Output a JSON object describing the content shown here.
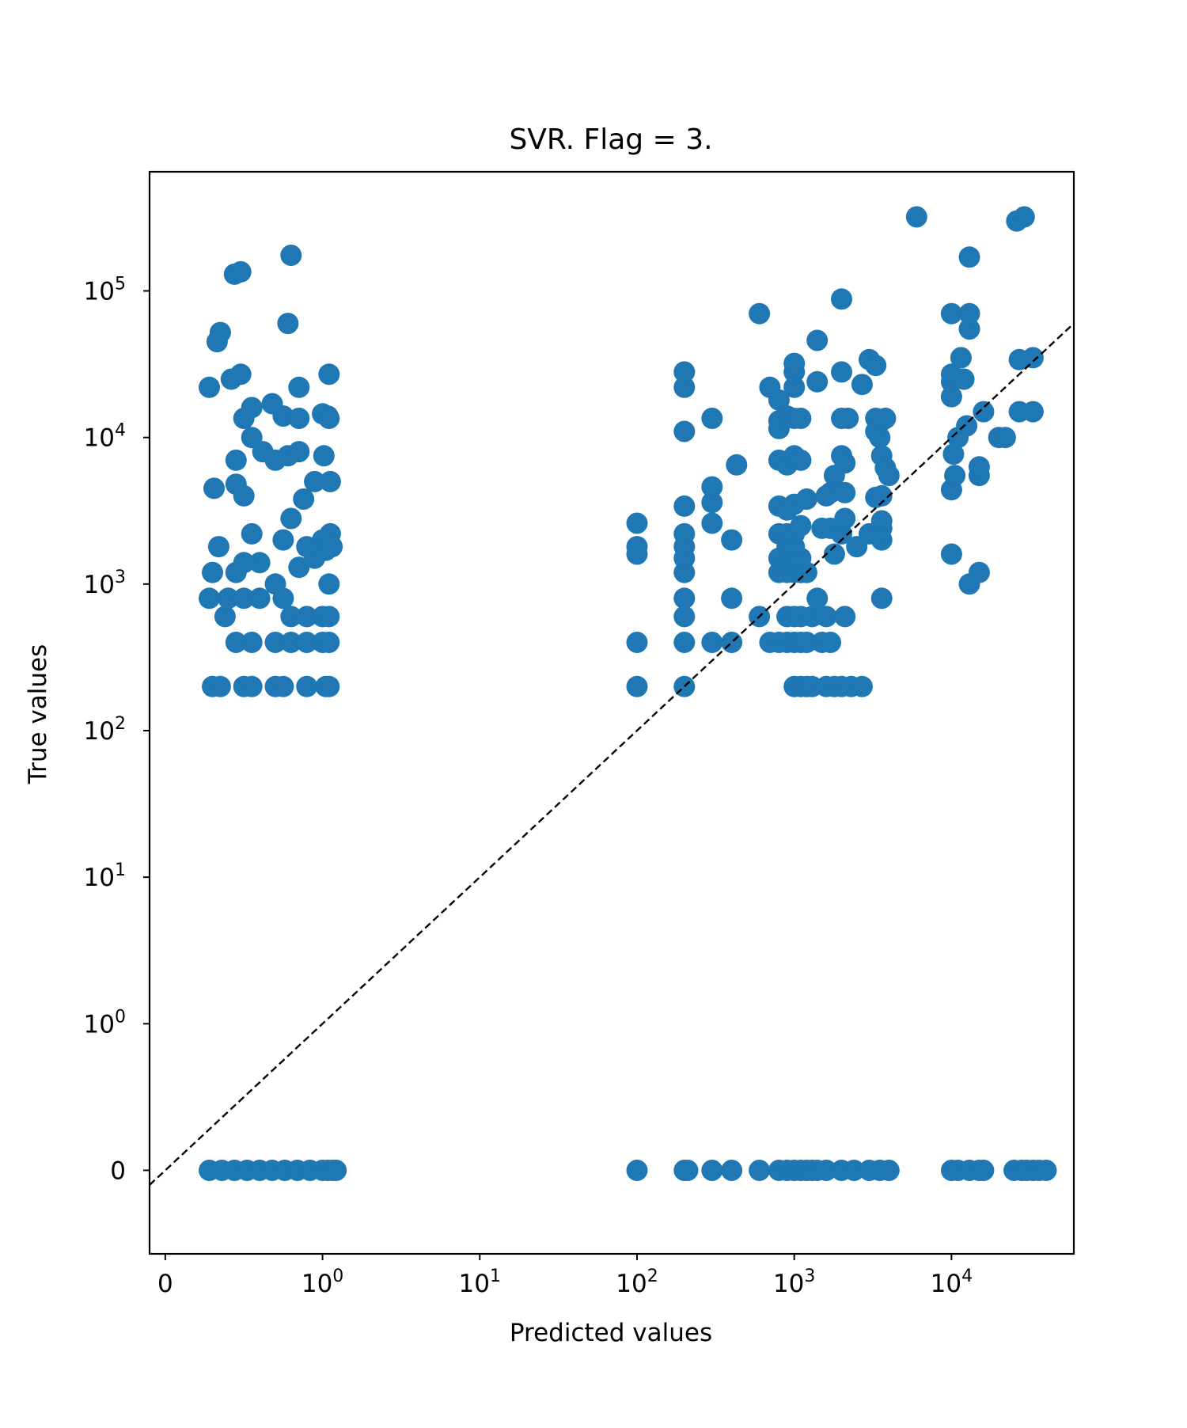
{
  "chart_data": {
    "type": "scatter",
    "title": "SVR. Flag = 3.",
    "xlabel": "Predicted values",
    "ylabel": "True values",
    "xscale": "symlog",
    "yscale": "symlog",
    "linthresh": 1,
    "xlim": [
      -0.1,
      60000
    ],
    "ylim": [
      -0.57,
      650000
    ],
    "x_ticks": [
      {
        "value": 0,
        "base": "0",
        "exp": ""
      },
      {
        "value": 1,
        "base": "10",
        "exp": "0"
      },
      {
        "value": 10,
        "base": "10",
        "exp": "1"
      },
      {
        "value": 100,
        "base": "10",
        "exp": "2"
      },
      {
        "value": 1000,
        "base": "10",
        "exp": "3"
      },
      {
        "value": 10000,
        "base": "10",
        "exp": "4"
      }
    ],
    "y_ticks": [
      {
        "value": 0,
        "base": "0",
        "exp": ""
      },
      {
        "value": 1,
        "base": "10",
        "exp": "0"
      },
      {
        "value": 10,
        "base": "10",
        "exp": "1"
      },
      {
        "value": 100,
        "base": "10",
        "exp": "2"
      },
      {
        "value": 1000,
        "base": "10",
        "exp": "3"
      },
      {
        "value": 10000,
        "base": "10",
        "exp": "4"
      },
      {
        "value": 100000,
        "base": "10",
        "exp": "5"
      }
    ],
    "grid": false,
    "legend": "none",
    "reference_line": {
      "type": "identity y=x",
      "style": "dashed",
      "color": "#000000"
    },
    "marker_color": "#1f77b4",
    "points": [
      [
        0.28,
        0
      ],
      [
        0.36,
        0
      ],
      [
        0.44,
        0
      ],
      [
        0.52,
        0
      ],
      [
        0.6,
        0
      ],
      [
        0.68,
        0
      ],
      [
        0.76,
        0
      ],
      [
        0.84,
        0
      ],
      [
        0.92,
        0
      ],
      [
        1.0,
        0
      ],
      [
        1.08,
        0
      ],
      [
        1.16,
        0
      ],
      [
        1.22,
        0
      ],
      [
        100,
        0
      ],
      [
        200,
        0
      ],
      [
        210,
        0
      ],
      [
        300,
        0
      ],
      [
        400,
        0
      ],
      [
        600,
        0
      ],
      [
        800,
        0
      ],
      [
        900,
        0
      ],
      [
        1000,
        0
      ],
      [
        1100,
        0
      ],
      [
        1200,
        0
      ],
      [
        1300,
        0
      ],
      [
        1400,
        0
      ],
      [
        1600,
        0
      ],
      [
        2000,
        0
      ],
      [
        2400,
        0
      ],
      [
        3000,
        0
      ],
      [
        3500,
        0
      ],
      [
        4000,
        0
      ],
      [
        10000,
        0
      ],
      [
        11000,
        0
      ],
      [
        13000,
        0
      ],
      [
        15000,
        0
      ],
      [
        16000,
        0
      ],
      [
        25000,
        0
      ],
      [
        28000,
        0
      ],
      [
        30000,
        0
      ],
      [
        33000,
        0
      ],
      [
        36000,
        0
      ],
      [
        40000,
        0
      ],
      [
        0.3,
        200
      ],
      [
        0.35,
        200
      ],
      [
        0.5,
        200
      ],
      [
        0.55,
        200
      ],
      [
        0.7,
        200
      ],
      [
        0.75,
        200
      ],
      [
        0.9,
        200
      ],
      [
        1.05,
        200
      ],
      [
        1.1,
        200
      ],
      [
        0.45,
        400
      ],
      [
        0.55,
        400
      ],
      [
        0.7,
        400
      ],
      [
        0.8,
        400
      ],
      [
        0.9,
        400
      ],
      [
        1.0,
        400
      ],
      [
        1.1,
        400
      ],
      [
        0.38,
        600
      ],
      [
        0.8,
        600
      ],
      [
        0.9,
        600
      ],
      [
        1.0,
        600
      ],
      [
        1.1,
        600
      ],
      [
        0.28,
        800
      ],
      [
        0.4,
        800
      ],
      [
        0.5,
        800
      ],
      [
        0.6,
        800
      ],
      [
        0.75,
        800
      ],
      [
        0.3,
        1200
      ],
      [
        0.45,
        1200
      ],
      [
        0.6,
        1400
      ],
      [
        0.7,
        1000
      ],
      [
        1.1,
        1000
      ],
      [
        0.85,
        1300
      ],
      [
        0.95,
        1500
      ],
      [
        0.34,
        1800
      ],
      [
        0.5,
        1400
      ],
      [
        0.55,
        2200
      ],
      [
        0.75,
        2000
      ],
      [
        0.8,
        2800
      ],
      [
        0.9,
        1800
      ],
      [
        1.0,
        2000
      ],
      [
        1.05,
        1700
      ],
      [
        1.12,
        2200
      ],
      [
        1.15,
        1800
      ],
      [
        0.31,
        4500
      ],
      [
        0.45,
        4800
      ],
      [
        0.5,
        4000
      ],
      [
        0.88,
        3800
      ],
      [
        0.95,
        5000
      ],
      [
        1.12,
        5000
      ],
      [
        0.45,
        7000
      ],
      [
        0.55,
        10000
      ],
      [
        0.62,
        8000
      ],
      [
        0.7,
        7000
      ],
      [
        0.78,
        7500
      ],
      [
        0.85,
        8000
      ],
      [
        1.02,
        7500
      ],
      [
        0.5,
        13500
      ],
      [
        0.55,
        16000
      ],
      [
        0.68,
        17000
      ],
      [
        0.75,
        14000
      ],
      [
        0.85,
        13500
      ],
      [
        1.0,
        14500
      ],
      [
        1.08,
        14000
      ],
      [
        1.1,
        13500
      ],
      [
        0.28,
        22000
      ],
      [
        0.42,
        25000
      ],
      [
        0.48,
        27000
      ],
      [
        0.85,
        22000
      ],
      [
        1.1,
        27000
      ],
      [
        0.33,
        45000
      ],
      [
        0.35,
        52000
      ],
      [
        0.78,
        60000
      ],
      [
        0.44,
        130000
      ],
      [
        0.48,
        135000
      ],
      [
        0.8,
        175000
      ],
      [
        100,
        200
      ],
      [
        200,
        200
      ],
      [
        100,
        400
      ],
      [
        200,
        400
      ],
      [
        300,
        400
      ],
      [
        400,
        400
      ],
      [
        200,
        600
      ],
      [
        200,
        800
      ],
      [
        400,
        800
      ],
      [
        200,
        1200
      ],
      [
        200,
        1500
      ],
      [
        200,
        1800
      ],
      [
        200,
        2200
      ],
      [
        100,
        1600
      ],
      [
        100,
        1800
      ],
      [
        100,
        2600
      ],
      [
        200,
        3400
      ],
      [
        300,
        2600
      ],
      [
        300,
        3600
      ],
      [
        300,
        4600
      ],
      [
        400,
        2000
      ],
      [
        430,
        6500
      ],
      [
        300,
        13500
      ],
      [
        200,
        11000
      ],
      [
        200,
        22000
      ],
      [
        200,
        28000
      ],
      [
        600,
        70000
      ],
      [
        1000,
        200
      ],
      [
        1100,
        200
      ],
      [
        1200,
        200
      ],
      [
        1300,
        200
      ],
      [
        1600,
        200
      ],
      [
        1800,
        200
      ],
      [
        2000,
        200
      ],
      [
        2300,
        200
      ],
      [
        2700,
        200
      ],
      [
        700,
        400
      ],
      [
        800,
        400
      ],
      [
        900,
        400
      ],
      [
        1000,
        400
      ],
      [
        1100,
        400
      ],
      [
        1200,
        400
      ],
      [
        1500,
        400
      ],
      [
        1700,
        400
      ],
      [
        900,
        600
      ],
      [
        1000,
        600
      ],
      [
        1100,
        600
      ],
      [
        1300,
        600
      ],
      [
        1600,
        600
      ],
      [
        2100,
        600
      ],
      [
        600,
        600
      ],
      [
        1400,
        800
      ],
      [
        3600,
        800
      ],
      [
        800,
        1200
      ],
      [
        900,
        1200
      ],
      [
        1000,
        1200
      ],
      [
        1100,
        1200
      ],
      [
        1200,
        1200
      ],
      [
        800,
        1500
      ],
      [
        900,
        1500
      ],
      [
        1000,
        1500
      ],
      [
        1100,
        1500
      ],
      [
        900,
        1800
      ],
      [
        1000,
        1800
      ],
      [
        800,
        2200
      ],
      [
        900,
        2200
      ],
      [
        1000,
        2200
      ],
      [
        1100,
        2500
      ],
      [
        1800,
        1600
      ],
      [
        2500,
        1800
      ],
      [
        2000,
        2200
      ],
      [
        3000,
        2200
      ],
      [
        1700,
        2400
      ],
      [
        1500,
        2400
      ],
      [
        2100,
        2800
      ],
      [
        3600,
        2000
      ],
      [
        3600,
        2400
      ],
      [
        800,
        3400
      ],
      [
        900,
        3200
      ],
      [
        1000,
        3500
      ],
      [
        1200,
        3800
      ],
      [
        1600,
        4000
      ],
      [
        1700,
        4200
      ],
      [
        2100,
        4200
      ],
      [
        3300,
        3900
      ],
      [
        3600,
        4000
      ],
      [
        3600,
        2700
      ],
      [
        800,
        7000
      ],
      [
        900,
        6500
      ],
      [
        1000,
        7500
      ],
      [
        1100,
        7000
      ],
      [
        2000,
        7500
      ],
      [
        2100,
        6700
      ],
      [
        1800,
        5500
      ],
      [
        3300,
        11000
      ],
      [
        3500,
        10000
      ],
      [
        3600,
        7500
      ],
      [
        3800,
        6200
      ],
      [
        4000,
        5500
      ],
      [
        3300,
        13500
      ],
      [
        3600,
        13000
      ],
      [
        3800,
        13500
      ],
      [
        800,
        11500
      ],
      [
        800,
        13000
      ],
      [
        900,
        14000
      ],
      [
        1000,
        13500
      ],
      [
        1100,
        13500
      ],
      [
        2000,
        13500
      ],
      [
        2200,
        13500
      ],
      [
        700,
        22000
      ],
      [
        800,
        18000
      ],
      [
        1000,
        22000
      ],
      [
        1000,
        28000
      ],
      [
        1000,
        32000
      ],
      [
        1400,
        24000
      ],
      [
        2000,
        28000
      ],
      [
        2700,
        23000
      ],
      [
        3000,
        34000
      ],
      [
        3300,
        31000
      ],
      [
        1400,
        46000
      ],
      [
        2000,
        88000
      ],
      [
        10000,
        4400
      ],
      [
        10000,
        1600
      ],
      [
        10500,
        5500
      ],
      [
        10300,
        7700
      ],
      [
        11000,
        10000
      ],
      [
        10000,
        19000
      ],
      [
        10000,
        24000
      ],
      [
        10000,
        27000
      ],
      [
        11500,
        35000
      ],
      [
        12000,
        25000
      ],
      [
        12500,
        12000
      ],
      [
        10000,
        70000
      ],
      [
        13000,
        55000
      ],
      [
        13000,
        70000
      ],
      [
        13000,
        170000
      ],
      [
        15000,
        5500
      ],
      [
        15000,
        6300
      ],
      [
        13000,
        1000
      ],
      [
        15000,
        1200
      ],
      [
        16000,
        15000
      ],
      [
        20000,
        10000
      ],
      [
        22000,
        10000
      ],
      [
        27000,
        15000
      ],
      [
        33000,
        15000
      ],
      [
        27000,
        34000
      ],
      [
        33000,
        35000
      ],
      [
        6000,
        320000
      ],
      [
        26000,
        300000
      ],
      [
        29000,
        320000
      ]
    ]
  }
}
